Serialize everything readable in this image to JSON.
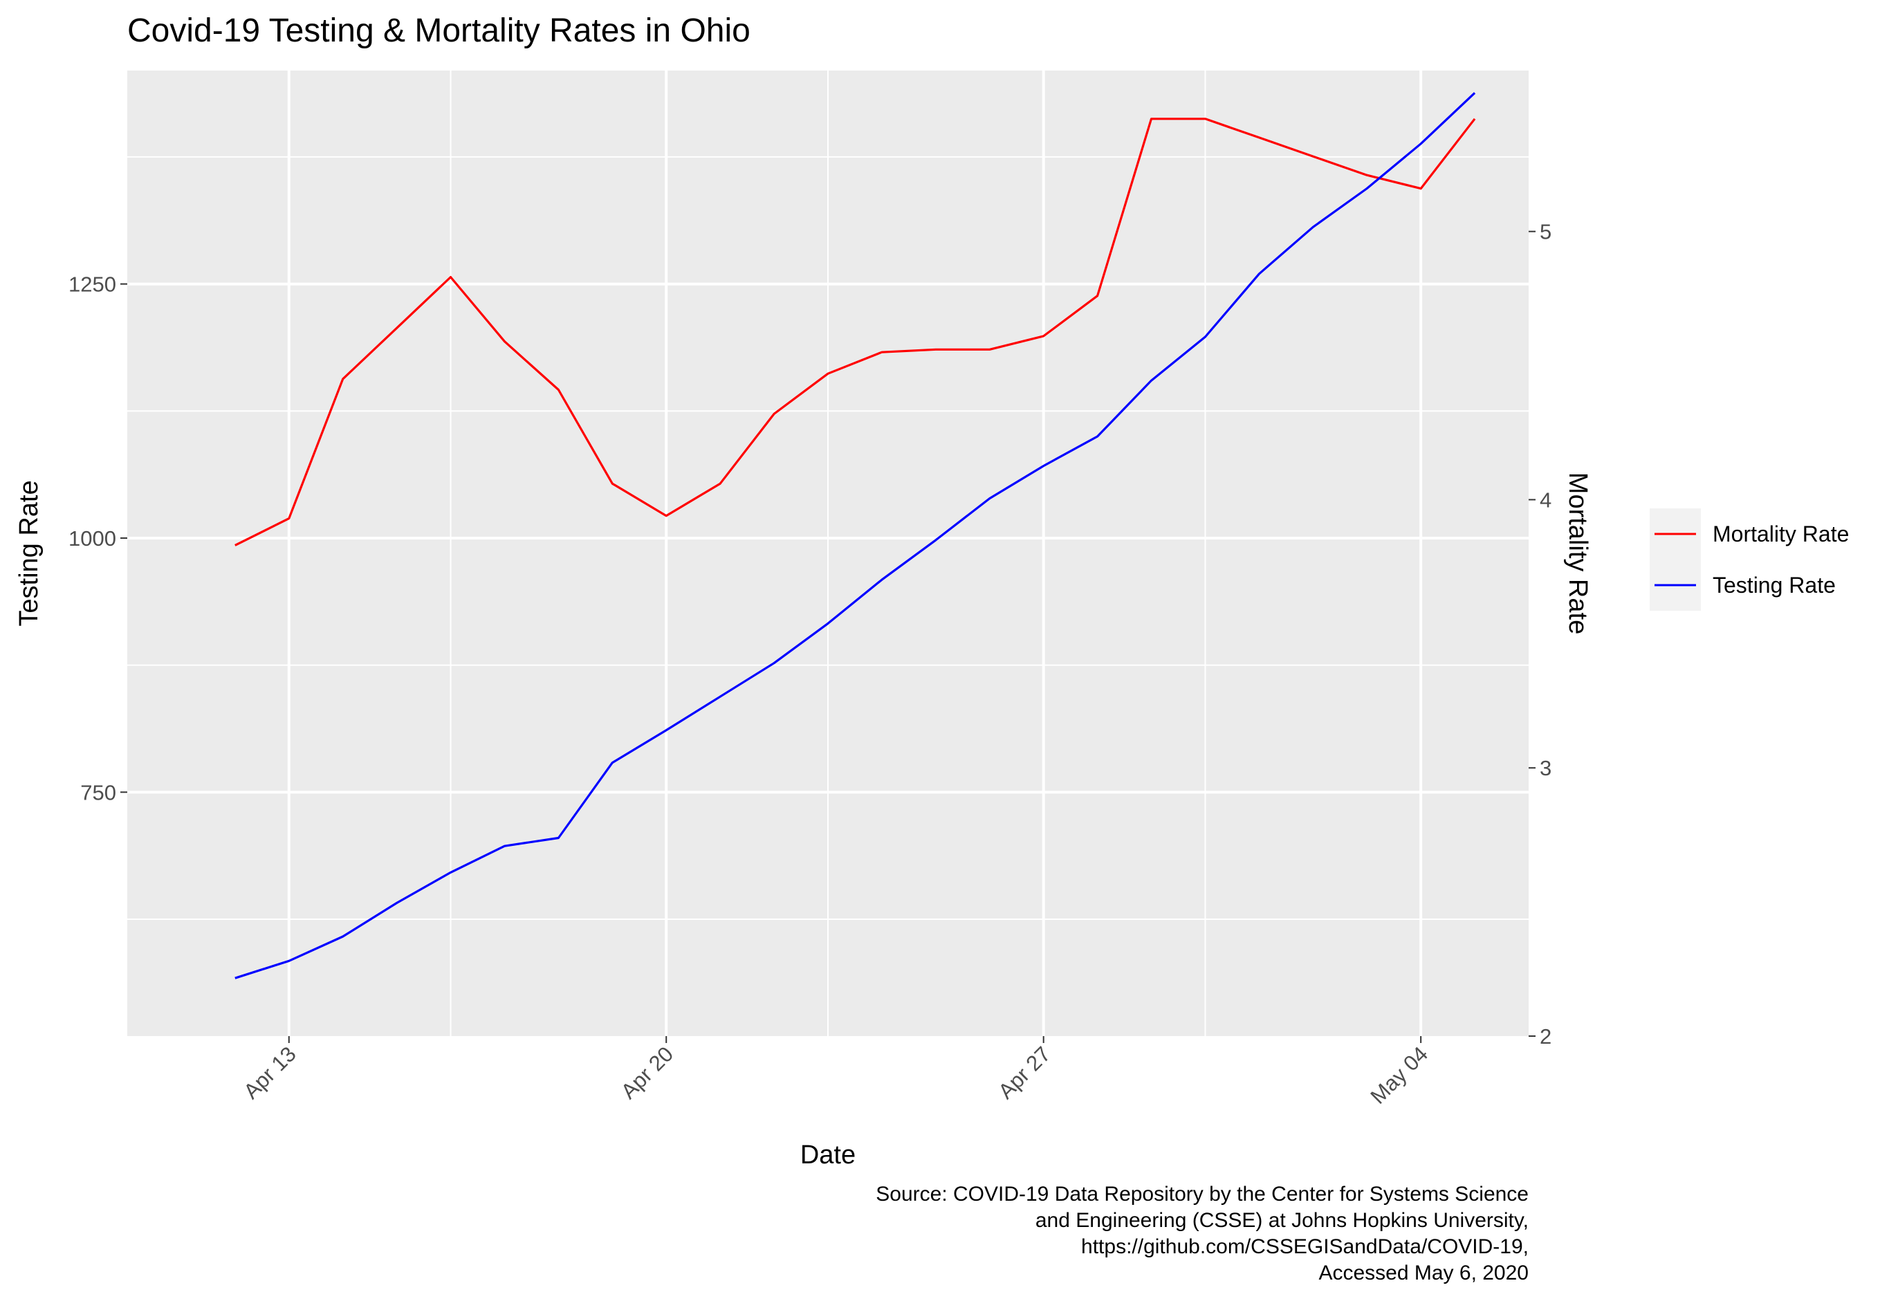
{
  "chart_data": {
    "type": "line",
    "title": "Covid-19 Testing & Mortality Rates in Ohio",
    "xlabel": "Date",
    "ylabel": "Testing Rate",
    "ylabel_right": "Mortality Rate",
    "x_ticks": [
      "Apr 13",
      "Apr 20",
      "Apr 27",
      "May 04"
    ],
    "x_tick_dates": [
      "2020-04-13",
      "2020-04-20",
      "2020-04-27",
      "2020-05-04"
    ],
    "xlim": [
      "2020-04-10",
      "2020-05-06"
    ],
    "y_ticks": [
      750,
      1000,
      1250
    ],
    "ylim": [
      510,
      1460
    ],
    "y_right_ticks": [
      2,
      3,
      4,
      5
    ],
    "y_right_lim": [
      2,
      5.6
    ],
    "grid": true,
    "legend_position": "right",
    "colors": {
      "panel": "#EBEBEB",
      "grid": "#FFFFFF",
      "mortality": "#FF0000",
      "testing": "#0000FF"
    },
    "x": [
      "2020-04-12",
      "2020-04-13",
      "2020-04-14",
      "2020-04-15",
      "2020-04-16",
      "2020-04-17",
      "2020-04-18",
      "2020-04-19",
      "2020-04-20",
      "2020-04-21",
      "2020-04-22",
      "2020-04-23",
      "2020-04-24",
      "2020-04-25",
      "2020-04-26",
      "2020-04-27",
      "2020-04-28",
      "2020-04-29",
      "2020-04-30",
      "2020-05-01",
      "2020-05-02",
      "2020-05-03",
      "2020-05-04",
      "2020-05-05"
    ],
    "series": [
      {
        "name": "Mortality Rate",
        "axis": "right",
        "color": "#FF0000",
        "values": [
          3.83,
          3.93,
          4.45,
          4.64,
          4.83,
          4.59,
          4.41,
          4.06,
          3.94,
          4.06,
          4.32,
          4.47,
          4.55,
          4.56,
          4.56,
          4.61,
          4.76,
          5.42,
          5.42,
          5.35,
          5.28,
          5.21,
          5.16,
          5.42
        ]
      },
      {
        "name": "Testing Rate",
        "axis": "left",
        "color": "#0000FF",
        "values": [
          567,
          584,
          608,
          641,
          671,
          697,
          705,
          779,
          811,
          844,
          877,
          916,
          959,
          998,
          1039,
          1071,
          1100,
          1155,
          1198,
          1260,
          1306,
          1344,
          1388,
          1438
        ]
      }
    ],
    "legend": [
      "Mortality Rate",
      "Testing Rate"
    ],
    "caption": [
      "Source: COVID-19 Data Repository by the Center for Systems Science",
      "and Engineering (CSSE) at Johns Hopkins University,",
      "https://github.com/CSSEGISandData/COVID-19,",
      "Accessed May 6, 2020"
    ]
  }
}
